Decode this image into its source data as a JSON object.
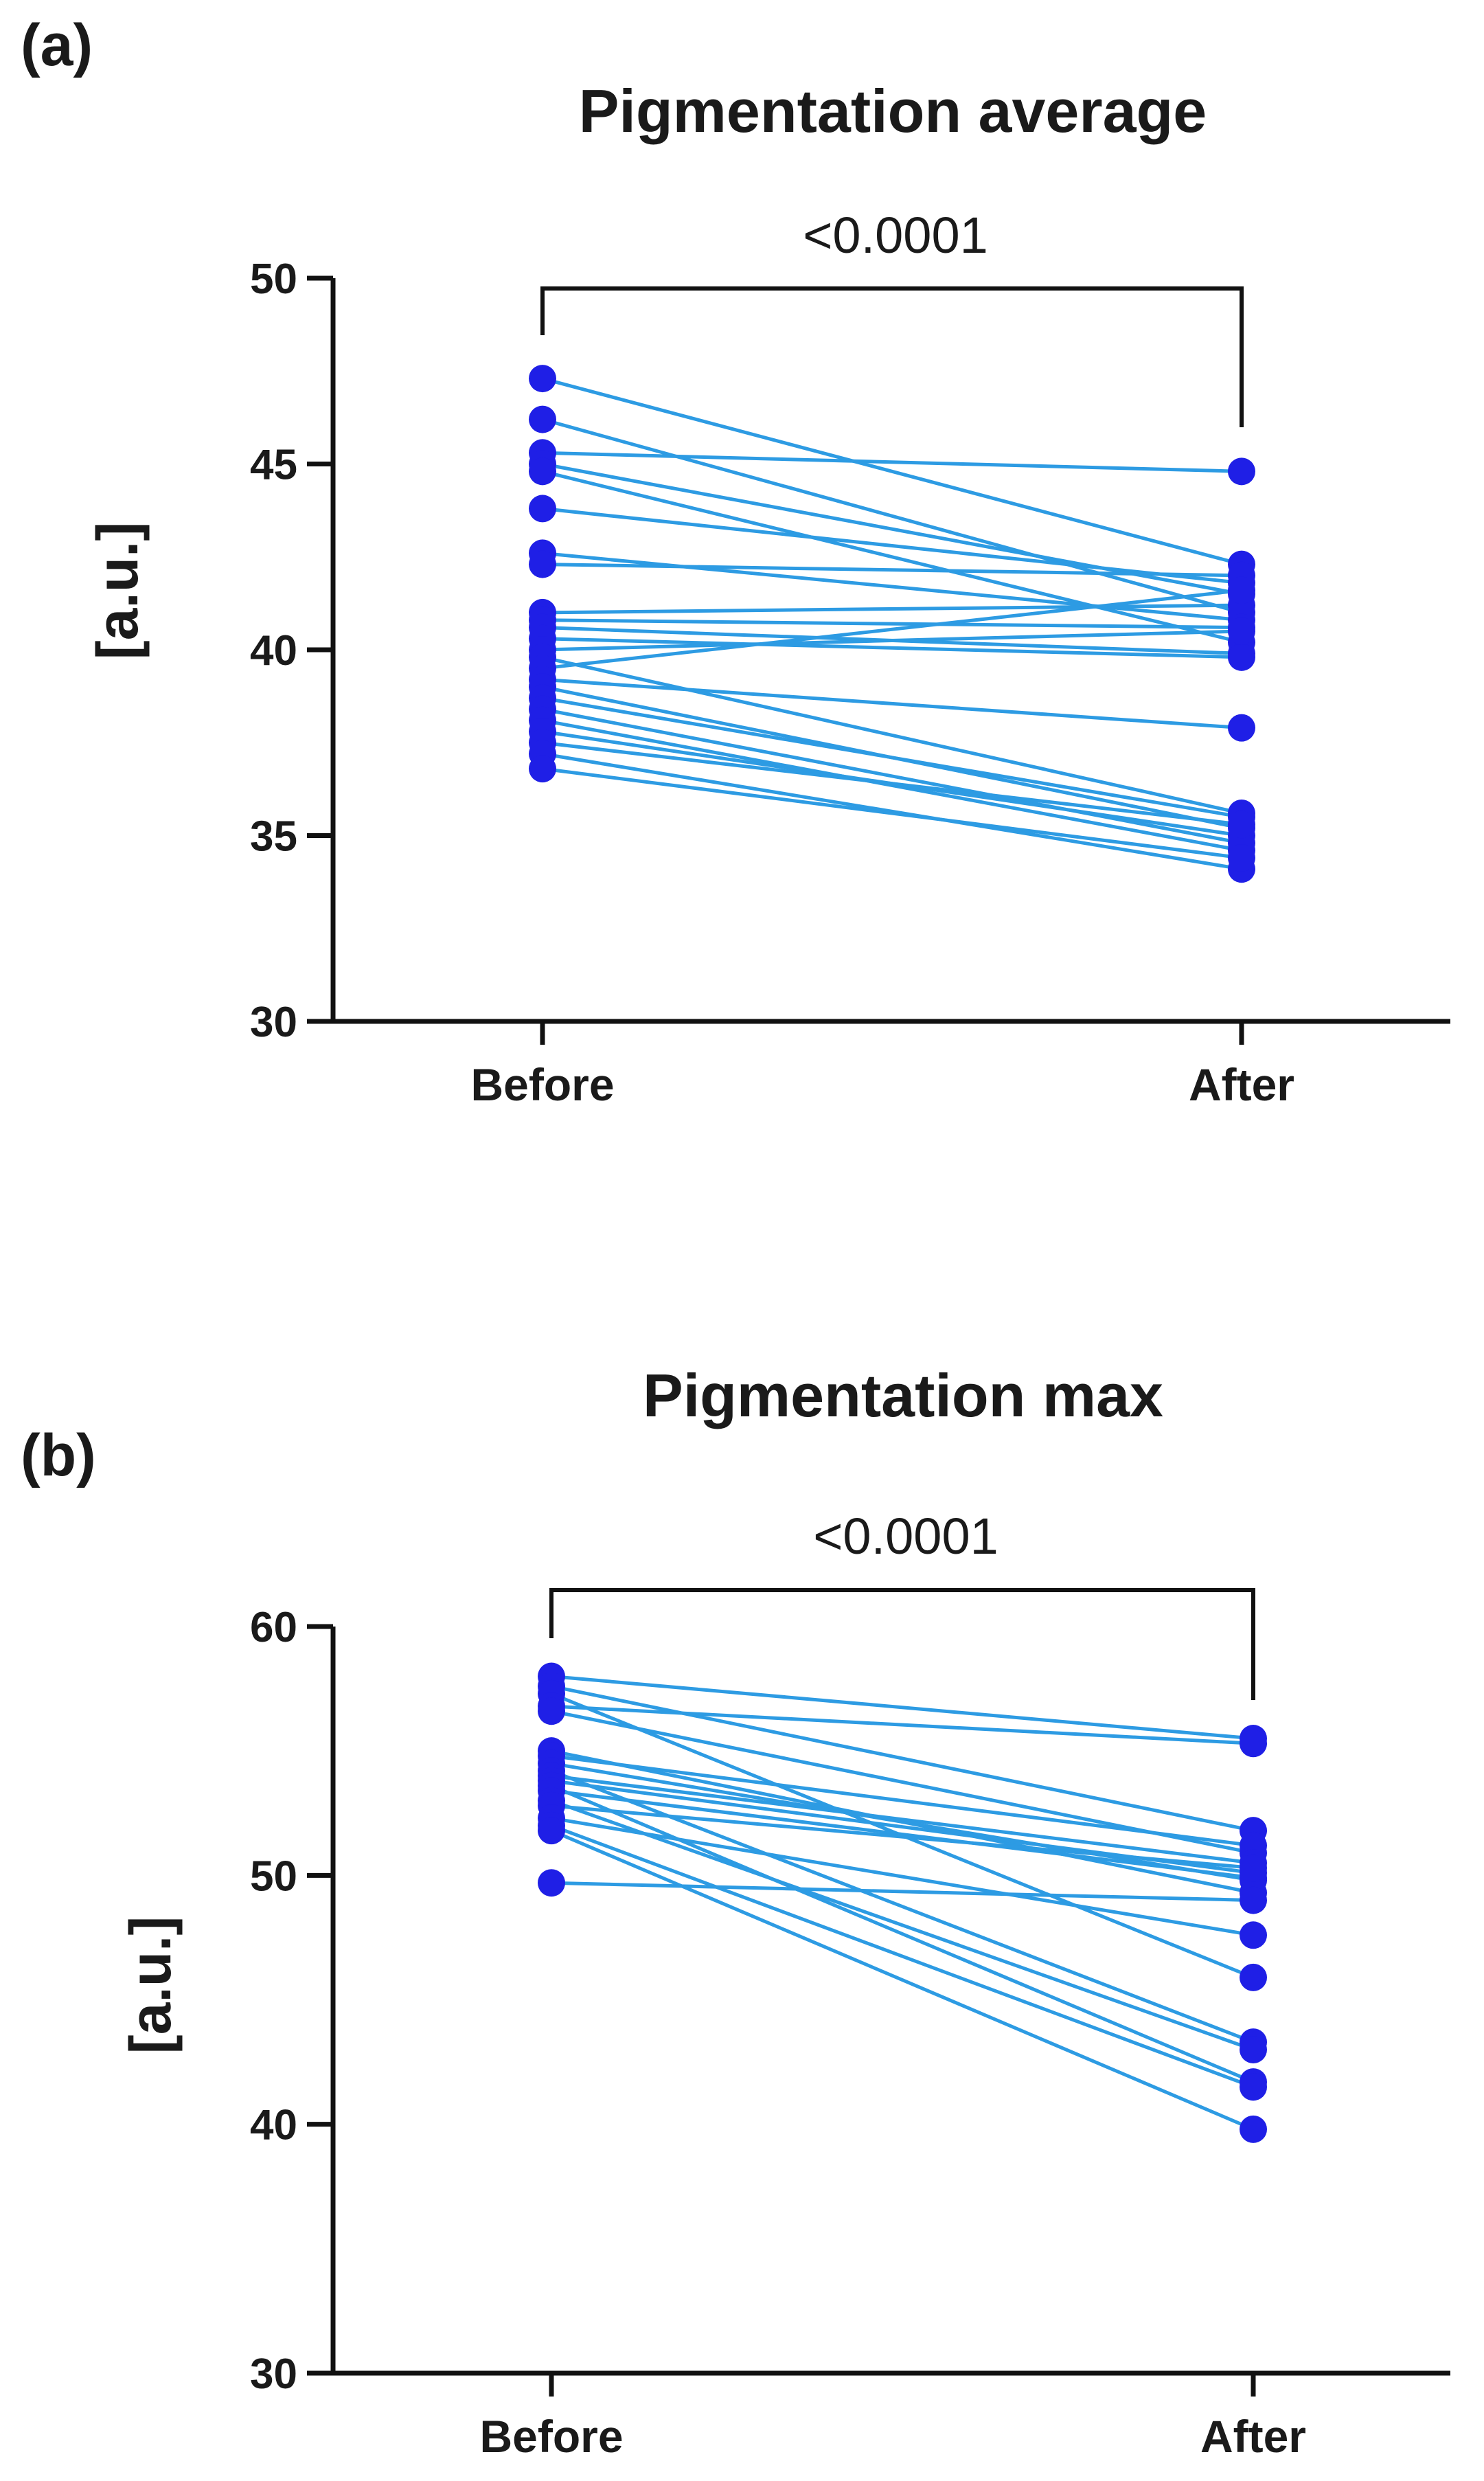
{
  "colors": {
    "point": "#1f1fe6",
    "line": "#2d9be3",
    "axis": "#111111",
    "ylabel_accent": "#d9731a"
  },
  "chart_data": [
    {
      "panel_label": "(a)",
      "type": "line",
      "title": "Pigmentation average",
      "xlabel": "",
      "ylabel": "[a.u.]",
      "categories": [
        "Before",
        "After"
      ],
      "ylim": [
        30,
        50
      ],
      "yticks": [
        30,
        35,
        40,
        45,
        50
      ],
      "yticklabels": [
        "30",
        "35",
        "40",
        "45",
        "50"
      ],
      "significance": {
        "text": "<0.0001",
        "from": "Before",
        "to": "After"
      },
      "pairs": [
        [
          47.3,
          42.3
        ],
        [
          46.2,
          41.0
        ],
        [
          45.3,
          44.8
        ],
        [
          45.0,
          41.5
        ],
        [
          44.8,
          40.2
        ],
        [
          43.8,
          41.8
        ],
        [
          42.6,
          40.8
        ],
        [
          42.3,
          42.0
        ],
        [
          41.0,
          41.2
        ],
        [
          40.8,
          40.6
        ],
        [
          40.6,
          39.9
        ],
        [
          40.3,
          39.8
        ],
        [
          40.0,
          40.5
        ],
        [
          39.8,
          35.6
        ],
        [
          39.5,
          41.6
        ],
        [
          39.2,
          37.9
        ],
        [
          39.0,
          35.2
        ],
        [
          38.7,
          35.5
        ],
        [
          38.4,
          34.8
        ],
        [
          38.1,
          34.6
        ],
        [
          37.8,
          35.0
        ],
        [
          37.5,
          35.3
        ],
        [
          37.2,
          34.1
        ],
        [
          36.8,
          34.4
        ]
      ]
    },
    {
      "panel_label": "(b)",
      "type": "line",
      "title": "Pigmentation max",
      "xlabel": "",
      "ylabel": "[a.u.]",
      "categories": [
        "Before",
        "After"
      ],
      "ylim": [
        30,
        60
      ],
      "yticks": [
        30,
        40,
        50,
        60
      ],
      "yticklabels": [
        "30",
        "40",
        "50",
        "60"
      ],
      "significance": {
        "text": "<0.0001",
        "from": "Before",
        "to": "After"
      },
      "pairs": [
        [
          58.0,
          55.5
        ],
        [
          57.6,
          51.8
        ],
        [
          57.3,
          45.9
        ],
        [
          56.8,
          55.3
        ],
        [
          56.6,
          50.9
        ],
        [
          55.0,
          49.3
        ],
        [
          54.8,
          51.2
        ],
        [
          54.5,
          49.8
        ],
        [
          54.2,
          43.3
        ],
        [
          54.0,
          50.5
        ],
        [
          53.8,
          50.1
        ],
        [
          53.6,
          41.7
        ],
        [
          53.4,
          49.9
        ],
        [
          53.0,
          43.0
        ],
        [
          52.8,
          50.3
        ],
        [
          52.3,
          47.6
        ],
        [
          52.0,
          41.5
        ],
        [
          51.8,
          39.8
        ],
        [
          49.7,
          49.0
        ]
      ]
    }
  ]
}
